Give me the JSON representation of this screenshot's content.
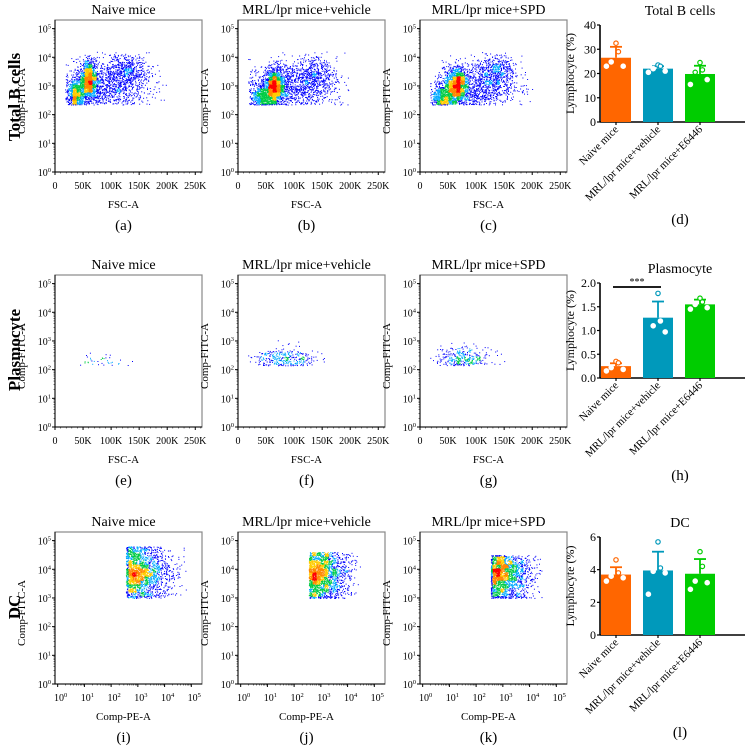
{
  "figure": {
    "row_labels": [
      "Total B cells",
      "Plasmocyte",
      "DC"
    ],
    "panel_letters": [
      "(a)",
      "(b)",
      "(c)",
      "(d)",
      "(e)",
      "(f)",
      "(g)",
      "(h)",
      "(i)",
      "(j)",
      "(k)",
      "(l)"
    ],
    "group_titles": [
      "Naive mice",
      "MRL/lpr mice+vehicle",
      "MRL/lpr mice+SPD"
    ],
    "bar_groups": [
      "Naive mice",
      "MRL/lpr mice+vehicle",
      "MRL/lpr mice+E6446"
    ],
    "colors": {
      "naive": "#ff6600",
      "vehicle": "#0099bb",
      "e6446": "#00cc00",
      "density_low": "#0000ff",
      "density_mid": "#00cc44",
      "density_high": "#ffcc00",
      "density_peak": "#ff0000"
    }
  },
  "chart_data": [
    {
      "panel": "(a)",
      "type": "scatter",
      "title": "Naive mice",
      "row": "Total B cells",
      "xlabel": "FSC-A",
      "ylabel": "Comp-FITC-A",
      "xticks": [
        "0",
        "50K",
        "100K",
        "150K",
        "200K",
        "250K"
      ],
      "xlim": [
        0,
        262000
      ],
      "xscale": "linear",
      "yticks": [
        "10^0",
        "10^1",
        "10^2",
        "10^3",
        "10^4",
        "10^5"
      ],
      "ylim_log10": [
        0,
        5.3
      ],
      "yscale": "log",
      "populations": [
        {
          "cx": 60000,
          "cy_log": 3.2,
          "sx": 8000,
          "sy_log": 0.35,
          "weight": 0.35
        },
        {
          "cx": 35000,
          "cy_log": 2.7,
          "sx": 7000,
          "sy_log": 0.3,
          "weight": 0.2
        },
        {
          "cx": 125000,
          "cy_log": 3.55,
          "sx": 20000,
          "sy_log": 0.3,
          "weight": 0.15
        },
        {
          "cx": 90000,
          "cy_log": 2.9,
          "sx": 40000,
          "sy_log": 0.45,
          "weight": 0.3
        }
      ],
      "gate_floor_log": 2.35,
      "density_level": "high"
    },
    {
      "panel": "(b)",
      "type": "scatter",
      "title": "MRL/lpr mice+vehicle",
      "row": "Total B cells",
      "xlabel": "FSC-A",
      "ylabel": "Comp-FITC-A",
      "xticks": [
        "0",
        "50K",
        "100K",
        "150K",
        "200K",
        "250K"
      ],
      "xlim": [
        0,
        262000
      ],
      "xscale": "linear",
      "yticks": [
        "10^0",
        "10^1",
        "10^2",
        "10^3",
        "10^4",
        "10^5"
      ],
      "ylim_log10": [
        0,
        5.3
      ],
      "yscale": "log",
      "populations": [
        {
          "cx": 65000,
          "cy_log": 3.05,
          "sx": 9000,
          "sy_log": 0.3,
          "weight": 0.35
        },
        {
          "cx": 45000,
          "cy_log": 2.6,
          "sx": 12000,
          "sy_log": 0.25,
          "weight": 0.2
        },
        {
          "cx": 135000,
          "cy_log": 3.45,
          "sx": 20000,
          "sy_log": 0.3,
          "weight": 0.12
        },
        {
          "cx": 95000,
          "cy_log": 2.9,
          "sx": 40000,
          "sy_log": 0.45,
          "weight": 0.33
        }
      ],
      "gate_floor_log": 2.35,
      "density_level": "high"
    },
    {
      "panel": "(c)",
      "type": "scatter",
      "title": "MRL/lpr mice+SPD",
      "row": "Total B cells",
      "xlabel": "FSC-A",
      "ylabel": "Comp-FITC-A",
      "xticks": [
        "0",
        "50K",
        "100K",
        "150K",
        "200K",
        "250K"
      ],
      "xlim": [
        0,
        262000
      ],
      "xscale": "linear",
      "yticks": [
        "10^0",
        "10^1",
        "10^2",
        "10^3",
        "10^4",
        "10^5"
      ],
      "ylim_log10": [
        0,
        5.3
      ],
      "yscale": "log",
      "populations": [
        {
          "cx": 65000,
          "cy_log": 3.05,
          "sx": 9000,
          "sy_log": 0.3,
          "weight": 0.35
        },
        {
          "cx": 40000,
          "cy_log": 2.55,
          "sx": 10000,
          "sy_log": 0.25,
          "weight": 0.2
        },
        {
          "cx": 135000,
          "cy_log": 3.5,
          "sx": 18000,
          "sy_log": 0.3,
          "weight": 0.12
        },
        {
          "cx": 95000,
          "cy_log": 2.9,
          "sx": 40000,
          "sy_log": 0.45,
          "weight": 0.33
        }
      ],
      "gate_floor_log": 2.35,
      "density_level": "high"
    },
    {
      "panel": "(d)",
      "type": "bar",
      "title": "Total B cells",
      "xlabel": "",
      "ylabel": "Lymphocyte (%)",
      "categories": [
        "Naive mice",
        "MRL/lpr mice+vehicle",
        "MRL/lpr mice+E6446"
      ],
      "values": [
        26.5,
        22.0,
        19.8
      ],
      "errors": [
        4.5,
        1.0,
        3.4
      ],
      "points": [
        [
          32.5,
          29.0,
          24.8,
          23.0,
          23.0
        ],
        [
          23.5,
          23.0,
          22.0,
          21.0,
          20.5
        ],
        [
          24.5,
          21.5,
          20.5,
          17.5,
          15.5
        ]
      ],
      "yticks": [
        0,
        10,
        20,
        30,
        40
      ],
      "ylim": [
        0,
        40
      ],
      "significance": []
    },
    {
      "panel": "(e)",
      "type": "scatter",
      "title": "Naive mice",
      "row": "Plasmocyte",
      "xlabel": "FSC-A",
      "ylabel": "Comp-FITC-A",
      "xticks": [
        "0",
        "50K",
        "100K",
        "150K",
        "200K",
        "250K"
      ],
      "xlim": [
        0,
        262000
      ],
      "xscale": "linear",
      "yticks": [
        "10^0",
        "10^1",
        "10^2",
        "10^3",
        "10^4",
        "10^5"
      ],
      "ylim_log10": [
        0,
        5.3
      ],
      "yscale": "log",
      "populations": [
        {
          "cx": 80000,
          "cy_log": 2.25,
          "sx": 25000,
          "sy_log": 0.15,
          "weight": 1.0
        }
      ],
      "gate_floor_log": 2.15,
      "density_level": "very_low"
    },
    {
      "panel": "(f)",
      "type": "scatter",
      "title": "MRL/lpr mice+vehicle",
      "row": "Plasmocyte",
      "xlabel": "FSC-A",
      "ylabel": "Comp-FITC-A",
      "xticks": [
        "0",
        "50K",
        "100K",
        "150K",
        "200K",
        "250K"
      ],
      "xlim": [
        0,
        262000
      ],
      "xscale": "linear",
      "yticks": [
        "10^0",
        "10^1",
        "10^2",
        "10^3",
        "10^4",
        "10^5"
      ],
      "ylim_log10": [
        0,
        5.3
      ],
      "yscale": "log",
      "populations": [
        {
          "cx": 80000,
          "cy_log": 2.35,
          "sx": 28000,
          "sy_log": 0.22,
          "weight": 1.0
        }
      ],
      "gate_floor_log": 2.15,
      "density_level": "low"
    },
    {
      "panel": "(g)",
      "type": "scatter",
      "title": "MRL/lpr mice+SPD",
      "row": "Plasmocyte",
      "xlabel": "FSC-A",
      "ylabel": "Comp-FITC-A",
      "xticks": [
        "0",
        "50K",
        "100K",
        "150K",
        "200K",
        "250K"
      ],
      "xlim": [
        0,
        262000
      ],
      "xscale": "linear",
      "yticks": [
        "10^0",
        "10^1",
        "10^2",
        "10^3",
        "10^4",
        "10^5"
      ],
      "ylim_log10": [
        0,
        5.3
      ],
      "yscale": "log",
      "populations": [
        {
          "cx": 75000,
          "cy_log": 2.35,
          "sx": 25000,
          "sy_log": 0.22,
          "weight": 1.0
        }
      ],
      "gate_floor_log": 2.15,
      "density_level": "low"
    },
    {
      "panel": "(h)",
      "type": "bar",
      "title": "Plasmocyte",
      "xlabel": "",
      "ylabel": "Lymphocyte (%)",
      "categories": [
        "Naive mice",
        "MRL/lpr mice+vehicle",
        "MRL/lpr mice+E6446"
      ],
      "values": [
        0.25,
        1.27,
        1.55
      ],
      "errors": [
        0.06,
        0.34,
        0.1
      ],
      "points": [
        [
          0.35,
          0.32,
          0.22,
          0.18,
          0.15
        ],
        [
          1.78,
          1.2,
          1.1,
          0.97
        ],
        [
          1.68,
          1.6,
          1.55,
          1.48,
          1.45
        ]
      ],
      "yticks": [
        "0.0",
        "0.5",
        "1.0",
        "1.5",
        "2.0"
      ],
      "ylim": [
        0,
        2.0
      ],
      "significance": [
        {
          "from": 0,
          "to": 1,
          "label": "***"
        }
      ]
    },
    {
      "panel": "(i)",
      "type": "scatter",
      "title": "Naive mice",
      "row": "DC",
      "xlabel": "Comp-PE-A",
      "ylabel": "Comp-FITC-A",
      "xticks": [
        "10^0",
        "10^1",
        "10^2",
        "10^3",
        "10^4",
        "10^5"
      ],
      "xlim_log10": [
        -0.1,
        5.4
      ],
      "xscale": "log",
      "yticks": [
        "10^0",
        "10^1",
        "10^2",
        "10^3",
        "10^4",
        "10^5"
      ],
      "ylim_log10": [
        0,
        5.3
      ],
      "yscale": "log",
      "gate_x_log": [
        2.55,
        4.8
      ],
      "gate_y_log": [
        3.0,
        4.8
      ],
      "density_level": "medium"
    },
    {
      "panel": "(j)",
      "type": "scatter",
      "title": "MRL/lpr mice+vehicle",
      "row": "DC",
      "xlabel": "Comp-PE-A",
      "ylabel": "Comp-FITC-A",
      "xticks": [
        "10^0",
        "10^1",
        "10^2",
        "10^3",
        "10^4",
        "10^5"
      ],
      "xlim_log10": [
        -0.1,
        5.4
      ],
      "xscale": "log",
      "yticks": [
        "10^0",
        "10^1",
        "10^2",
        "10^3",
        "10^4",
        "10^5"
      ],
      "ylim_log10": [
        0,
        5.3
      ],
      "yscale": "log",
      "gate_x_log": [
        2.55,
        4.5
      ],
      "gate_y_log": [
        3.0,
        4.6
      ],
      "density_level": "medium"
    },
    {
      "panel": "(k)",
      "type": "scatter",
      "title": "MRL/lpr mice+SPD",
      "row": "DC",
      "xlabel": "Comp-PE-A",
      "ylabel": "Comp-FITC-A",
      "xticks": [
        "10^0",
        "10^1",
        "10^2",
        "10^3",
        "10^4",
        "10^5"
      ],
      "xlim_log10": [
        -0.1,
        5.4
      ],
      "xscale": "log",
      "yticks": [
        "10^0",
        "10^1",
        "10^2",
        "10^3",
        "10^4",
        "10^5"
      ],
      "ylim_log10": [
        0,
        5.3
      ],
      "yscale": "log",
      "gate_x_log": [
        2.55,
        4.5
      ],
      "gate_y_log": [
        3.0,
        4.5
      ],
      "density_level": "medium"
    },
    {
      "panel": "(l)",
      "type": "bar",
      "title": "DC",
      "xlabel": "",
      "ylabel": "Lymphocyte (%)",
      "categories": [
        "Naive mice",
        "MRL/lpr mice+vehicle",
        "MRL/lpr mice+E6446"
      ],
      "values": [
        3.7,
        3.95,
        3.75
      ],
      "errors": [
        0.45,
        1.15,
        0.9
      ],
      "points": [
        [
          4.6,
          3.8,
          3.6,
          3.5,
          3.3
        ],
        [
          5.7,
          4.1,
          3.9,
          3.8,
          2.5
        ],
        [
          5.1,
          4.2,
          3.3,
          3.2,
          2.8
        ]
      ],
      "yticks": [
        0,
        2,
        4,
        6
      ],
      "ylim": [
        0,
        6
      ],
      "significance": []
    }
  ]
}
